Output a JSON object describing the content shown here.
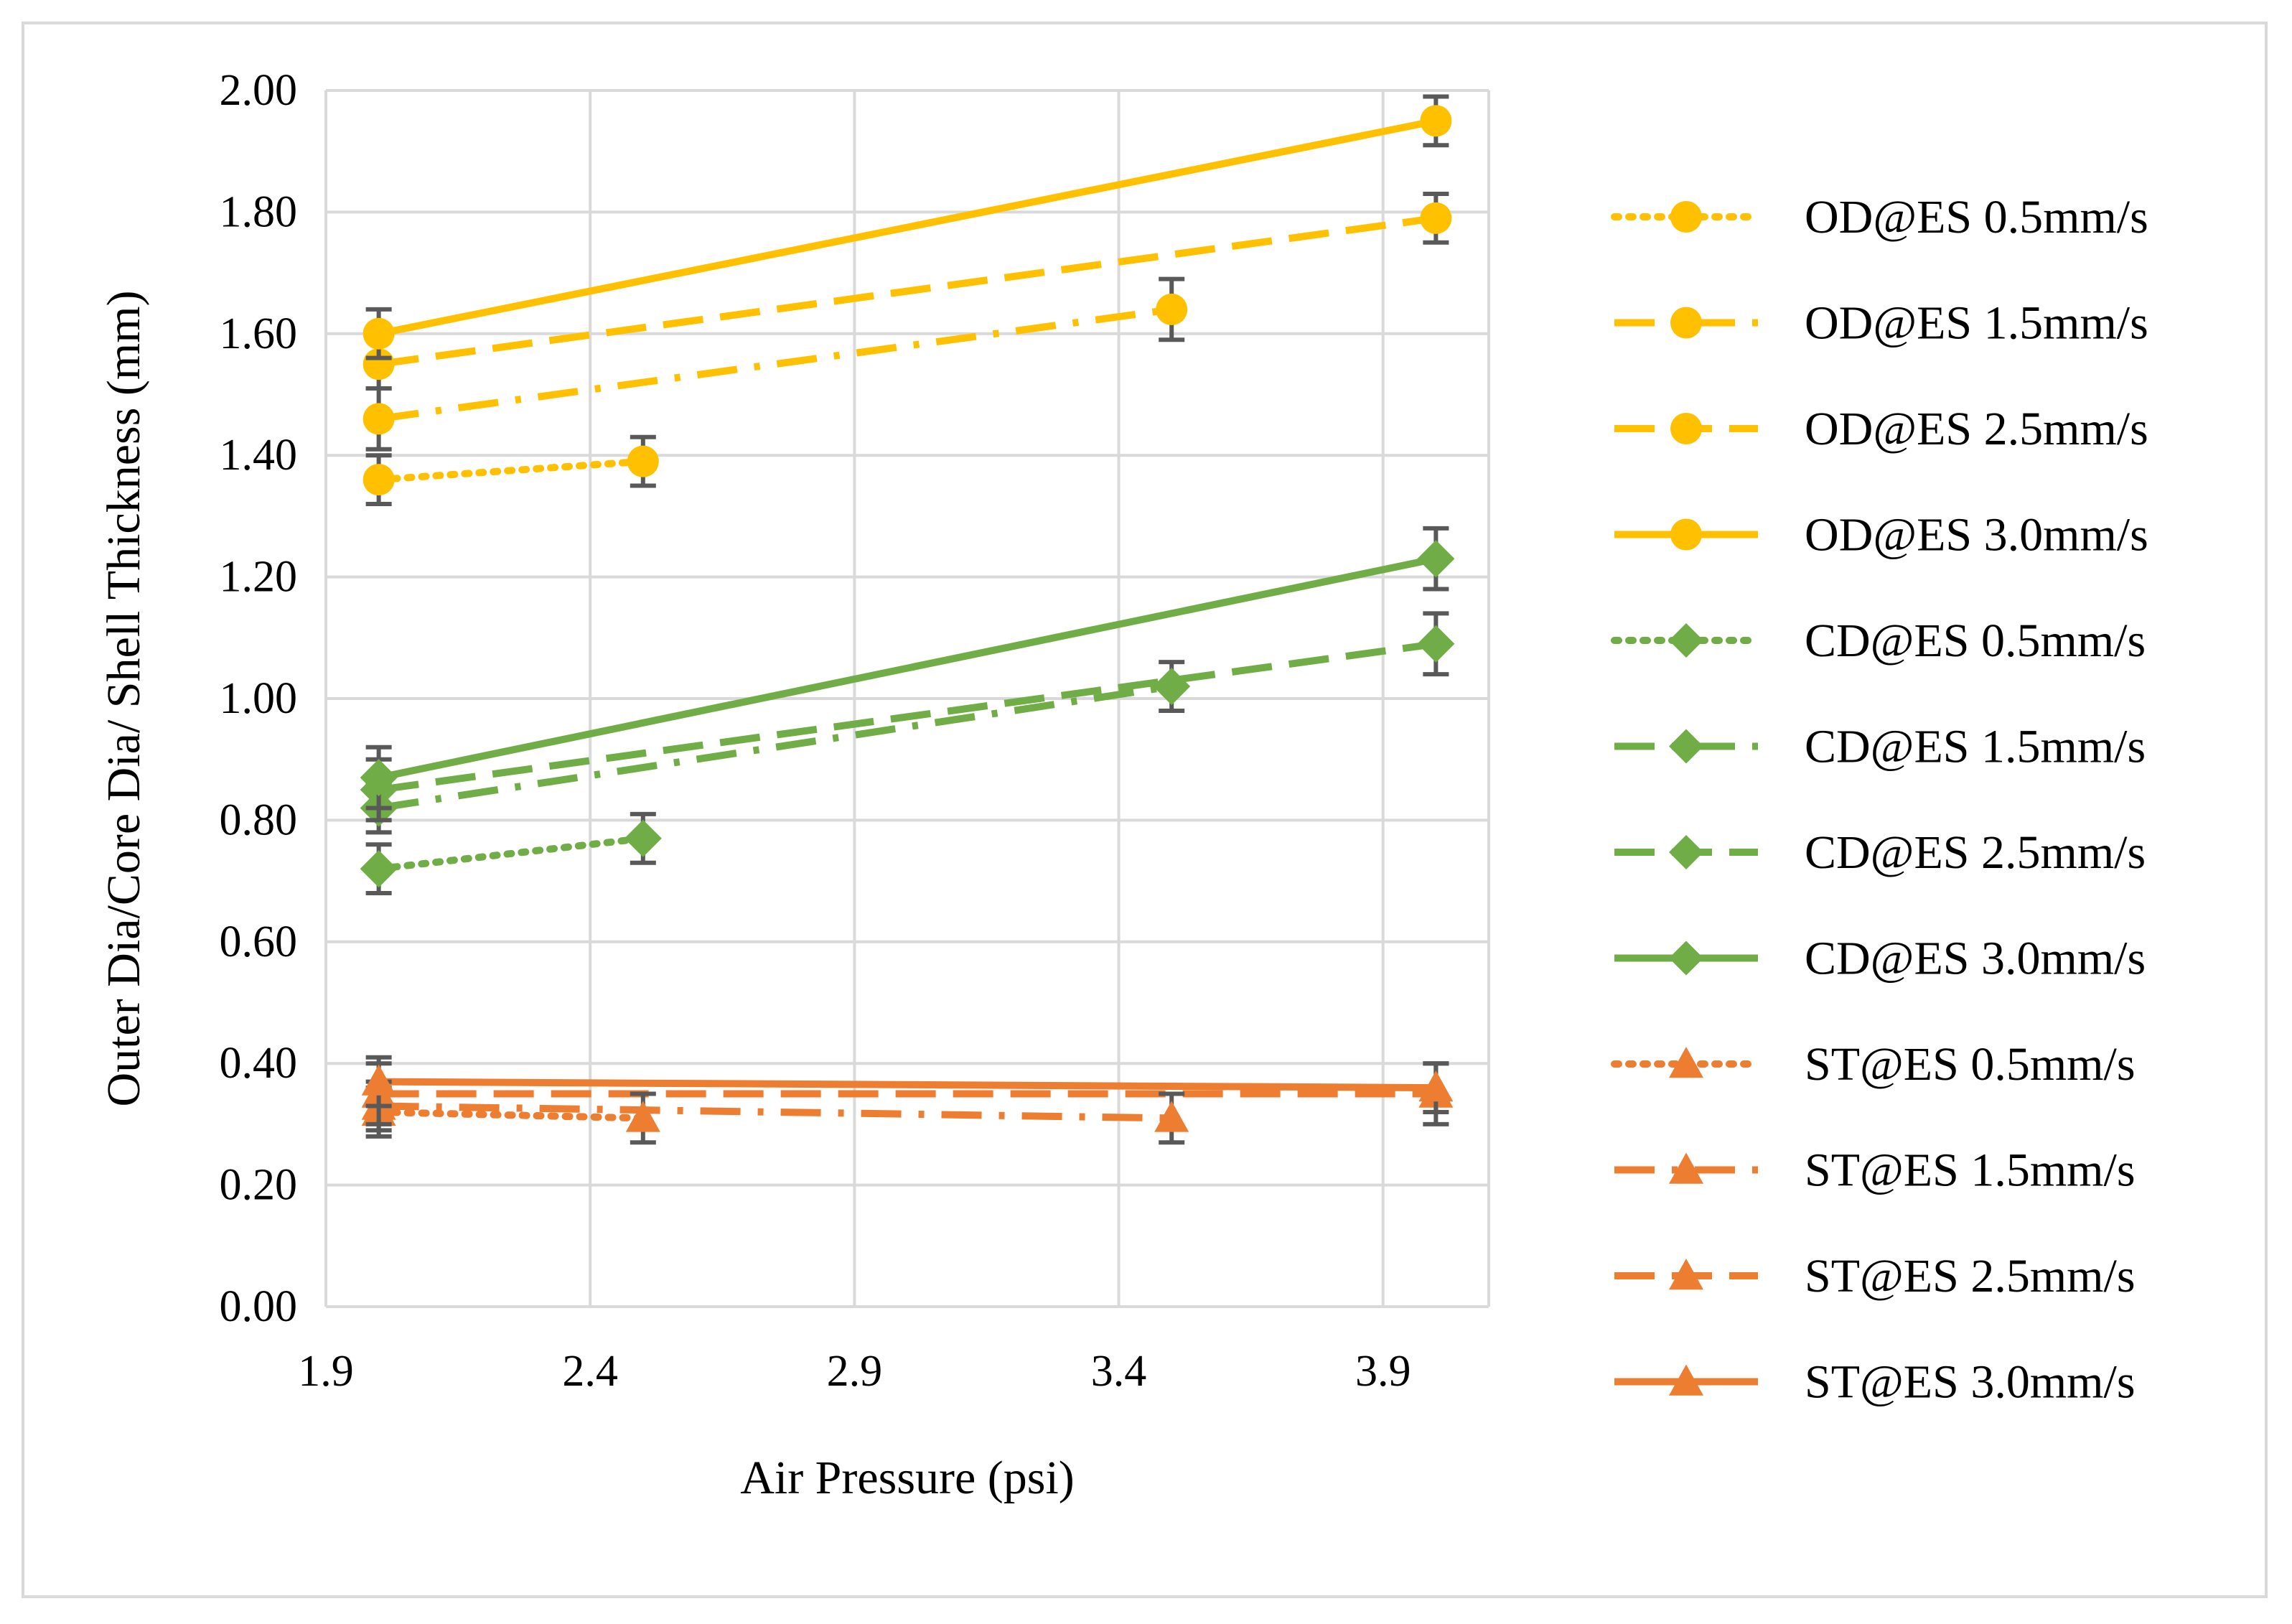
{
  "chart_data": {
    "type": "line",
    "title": "",
    "xlabel": "Air Pressure (psi)",
    "ylabel": "Outer Dia/Core Dia/ Shell Thickness (mm)",
    "xlim": [
      1.9,
      4.1
    ],
    "ylim": [
      0.0,
      2.0
    ],
    "x_ticks": [
      "1.9",
      "2.4",
      "2.9",
      "3.4",
      "3.9"
    ],
    "x_tick_values": [
      1.9,
      2.4,
      2.9,
      3.4,
      3.9
    ],
    "y_ticks": [
      "0.00",
      "0.20",
      "0.40",
      "0.60",
      "0.80",
      "1.00",
      "1.20",
      "1.40",
      "1.60",
      "1.80",
      "2.00"
    ],
    "y_tick_values": [
      0,
      0.2,
      0.4,
      0.6,
      0.8,
      1.0,
      1.2,
      1.4,
      1.6,
      1.8,
      2.0
    ],
    "grid": true,
    "legend_position": "right",
    "colors": {
      "OD": "#ffc000",
      "CD": "#70ad47",
      "ST": "#ed7d31",
      "error_bar": "#595959",
      "grid": "#d9d9d9"
    },
    "series": [
      {
        "name": "OD@ES 0.5mm/s",
        "group": "OD",
        "marker": "circle",
        "dash": "dot",
        "x": [
          2.0,
          2.5
        ],
        "values": [
          1.36,
          1.39
        ],
        "error": [
          0.04,
          0.04
        ]
      },
      {
        "name": "OD@ES 1.5mm/s",
        "group": "OD",
        "marker": "circle",
        "dash": "dashdot",
        "x": [
          2.0,
          3.5
        ],
        "values": [
          1.46,
          1.64
        ],
        "error": [
          0.05,
          0.05
        ]
      },
      {
        "name": "OD@ES 2.5mm/s",
        "group": "OD",
        "marker": "circle",
        "dash": "dash",
        "x": [
          2.0,
          4.0
        ],
        "values": [
          1.55,
          1.79
        ],
        "error": [
          0.04,
          0.04
        ]
      },
      {
        "name": "OD@ES 3.0mm/s",
        "group": "OD",
        "marker": "circle",
        "dash": "solid",
        "x": [
          2.0,
          4.0
        ],
        "values": [
          1.6,
          1.95
        ],
        "error": [
          0.04,
          0.04
        ]
      },
      {
        "name": "CD@ES 0.5mm/s",
        "group": "CD",
        "marker": "diamond",
        "dash": "dot",
        "x": [
          2.0,
          2.5
        ],
        "values": [
          0.72,
          0.77
        ],
        "error": [
          0.04,
          0.04
        ]
      },
      {
        "name": "CD@ES 1.5mm/s",
        "group": "CD",
        "marker": "diamond",
        "dash": "dashdot",
        "x": [
          2.0,
          3.5
        ],
        "values": [
          0.82,
          1.02
        ],
        "error": [
          0.04,
          0.04
        ]
      },
      {
        "name": "CD@ES 2.5mm/s",
        "group": "CD",
        "marker": "diamond",
        "dash": "dash",
        "x": [
          2.0,
          4.0
        ],
        "values": [
          0.85,
          1.09
        ],
        "error": [
          0.05,
          0.05
        ]
      },
      {
        "name": "CD@ES 3.0mm/s",
        "group": "CD",
        "marker": "diamond",
        "dash": "solid",
        "x": [
          2.0,
          4.0
        ],
        "values": [
          0.87,
          1.23
        ],
        "error": [
          0.05,
          0.05
        ]
      },
      {
        "name": "ST@ES 0.5mm/s",
        "group": "ST",
        "marker": "triangle",
        "dash": "dot",
        "x": [
          2.0,
          2.5
        ],
        "values": [
          0.32,
          0.31
        ],
        "error": [
          0.04,
          0.04
        ]
      },
      {
        "name": "ST@ES 1.5mm/s",
        "group": "ST",
        "marker": "triangle",
        "dash": "dashdot",
        "x": [
          2.0,
          3.5
        ],
        "values": [
          0.33,
          0.31
        ],
        "error": [
          0.04,
          0.04
        ]
      },
      {
        "name": "ST@ES 2.5mm/s",
        "group": "ST",
        "marker": "triangle",
        "dash": "dash",
        "x": [
          2.0,
          4.0
        ],
        "values": [
          0.35,
          0.35
        ],
        "error": [
          0.05,
          0.05
        ]
      },
      {
        "name": "ST@ES 3.0mm/s",
        "group": "ST",
        "marker": "triangle",
        "dash": "solid",
        "x": [
          2.0,
          4.0
        ],
        "values": [
          0.37,
          0.36
        ],
        "error": [
          0.04,
          0.04
        ]
      }
    ]
  }
}
